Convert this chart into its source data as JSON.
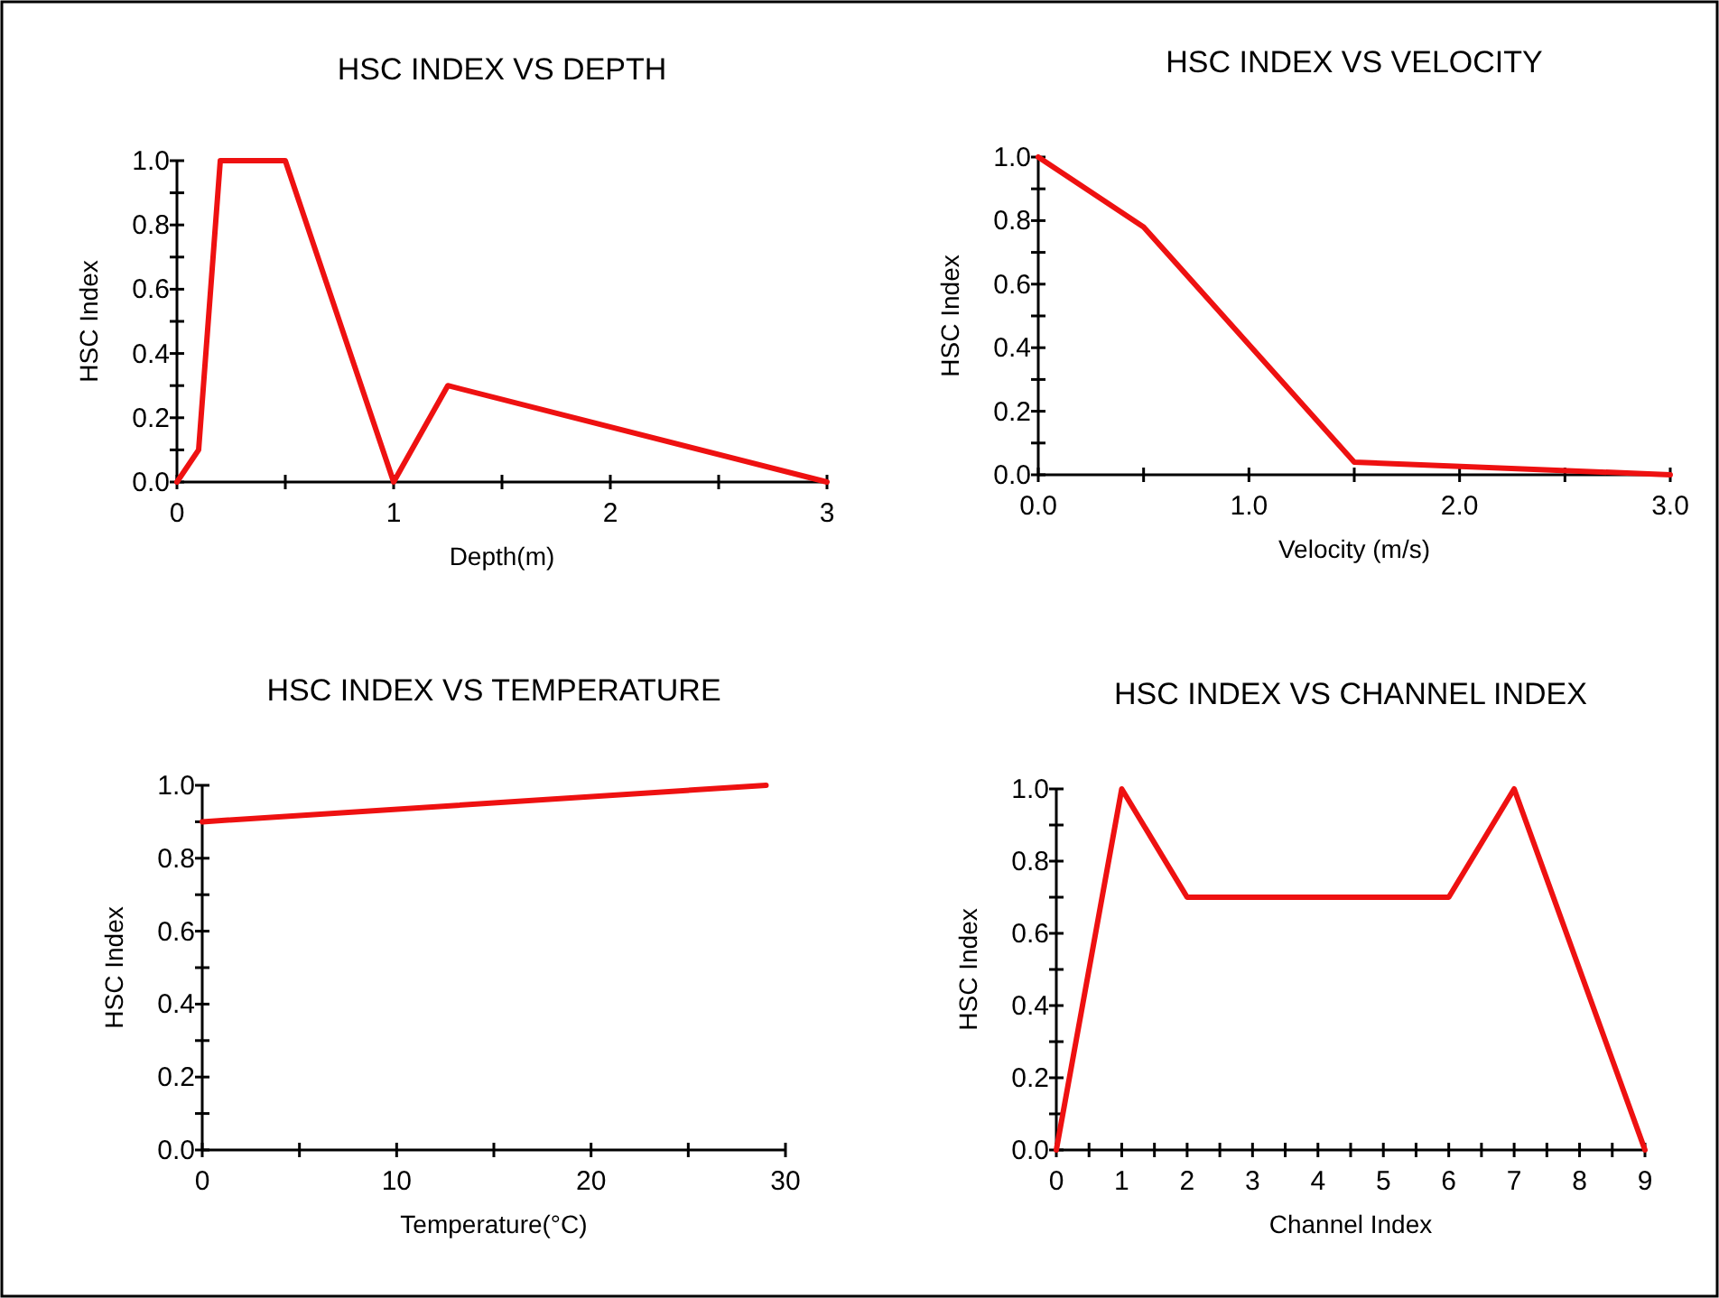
{
  "chart_data": [
    {
      "type": "line",
      "title": "HSC INDEX VS DEPTH",
      "xlabel": "Depth(m)",
      "ylabel": "HSC Index",
      "x": [
        0,
        0.1,
        0.2,
        0.5,
        1,
        1.25,
        3
      ],
      "series": [
        {
          "color": "#ee1111",
          "values": [
            0,
            0.1,
            1.0,
            1.0,
            0,
            0.3,
            0
          ]
        }
      ],
      "xlim": [
        0,
        3
      ],
      "xticks": [
        0,
        {
          "value": 0.5,
          "label": null
        },
        1,
        {
          "value": 1.5,
          "label": null
        },
        2,
        {
          "value": 2.5,
          "label": null
        },
        3
      ],
      "ylim": [
        0,
        1
      ],
      "yticks": [
        {
          "value": 0,
          "label": "0.0"
        },
        {
          "value": 0.1,
          "label": null
        },
        {
          "value": 0.2,
          "label": "0.2"
        },
        {
          "value": 0.3,
          "label": null
        },
        {
          "value": 0.4,
          "label": "0.4"
        },
        {
          "value": 0.5,
          "label": null
        },
        {
          "value": 0.6,
          "label": "0.6"
        },
        {
          "value": 0.7,
          "label": null
        },
        {
          "value": 0.8,
          "label": "0.8"
        },
        {
          "value": 0.9,
          "label": null
        },
        {
          "value": 1,
          "label": "1.0"
        }
      ],
      "grid": false,
      "marker": "none",
      "line_style": "solid"
    },
    {
      "type": "line",
      "title": "HSC INDEX VS VELOCITY",
      "xlabel": "Velocity (m/s)",
      "ylabel": "HSC Index",
      "x": [
        0,
        0.5,
        1.5,
        3
      ],
      "series": [
        {
          "color": "#ee1111",
          "values": [
            1.0,
            0.78,
            0.04,
            0
          ]
        }
      ],
      "xlim": [
        0,
        3
      ],
      "xticks": [
        {
          "value": 0,
          "label": "0.0"
        },
        {
          "value": 0.5,
          "label": null
        },
        {
          "value": 1,
          "label": "1.0"
        },
        {
          "value": 1.5,
          "label": null
        },
        {
          "value": 2,
          "label": "2.0"
        },
        {
          "value": 2.5,
          "label": null
        },
        {
          "value": 3,
          "label": "3.0"
        }
      ],
      "ylim": [
        0,
        1
      ],
      "yticks": [
        {
          "value": 0,
          "label": "0.0"
        },
        {
          "value": 0.1,
          "label": null
        },
        {
          "value": 0.2,
          "label": "0.2"
        },
        {
          "value": 0.3,
          "label": null
        },
        {
          "value": 0.4,
          "label": "0.4"
        },
        {
          "value": 0.5,
          "label": null
        },
        {
          "value": 0.6,
          "label": "0.6"
        },
        {
          "value": 0.7,
          "label": null
        },
        {
          "value": 0.8,
          "label": "0.8"
        },
        {
          "value": 0.9,
          "label": null
        },
        {
          "value": 1,
          "label": "1.0"
        }
      ],
      "grid": false,
      "marker": "none",
      "line_style": "solid"
    },
    {
      "type": "line",
      "title": "HSC INDEX VS TEMPERATURE",
      "xlabel": "Temperature(°C)",
      "ylabel": "HSC Index",
      "x": [
        0,
        29
      ],
      "series": [
        {
          "color": "#ee1111",
          "values": [
            0.9,
            1.0
          ]
        }
      ],
      "xlim": [
        0,
        30
      ],
      "xticks": [
        0,
        {
          "value": 5,
          "label": null
        },
        10,
        {
          "value": 15,
          "label": null
        },
        20,
        {
          "value": 25,
          "label": null
        },
        30
      ],
      "ylim": [
        0,
        1
      ],
      "yticks": [
        {
          "value": 0,
          "label": "0.0"
        },
        {
          "value": 0.1,
          "label": null
        },
        {
          "value": 0.2,
          "label": "0.2"
        },
        {
          "value": 0.3,
          "label": null
        },
        {
          "value": 0.4,
          "label": "0.4"
        },
        {
          "value": 0.5,
          "label": null
        },
        {
          "value": 0.6,
          "label": "0.6"
        },
        {
          "value": 0.7,
          "label": null
        },
        {
          "value": 0.8,
          "label": "0.8"
        },
        {
          "value": 0.9,
          "label": null
        },
        {
          "value": 1,
          "label": "1.0"
        }
      ],
      "grid": false,
      "marker": "none",
      "line_style": "solid"
    },
    {
      "type": "line",
      "title": "HSC INDEX VS CHANNEL INDEX",
      "xlabel": "Channel Index",
      "ylabel": "HSC Index",
      "x": [
        0,
        1,
        2,
        6,
        7,
        9
      ],
      "series": [
        {
          "color": "#ee1111",
          "values": [
            0,
            1.0,
            0.7,
            0.7,
            1.0,
            0
          ]
        }
      ],
      "xlim": [
        0,
        9
      ],
      "xticks": [
        0,
        {
          "value": 0.5,
          "label": null
        },
        1,
        {
          "value": 1.5,
          "label": null
        },
        2,
        {
          "value": 2.5,
          "label": null
        },
        3,
        {
          "value": 3.5,
          "label": null
        },
        4,
        {
          "value": 4.5,
          "label": null
        },
        5,
        {
          "value": 5.5,
          "label": null
        },
        6,
        {
          "value": 6.5,
          "label": null
        },
        7,
        {
          "value": 7.5,
          "label": null
        },
        8,
        {
          "value": 8.5,
          "label": null
        },
        9
      ],
      "ylim": [
        0,
        1
      ],
      "yticks": [
        {
          "value": 0,
          "label": "0.0"
        },
        {
          "value": 0.1,
          "label": null
        },
        {
          "value": 0.2,
          "label": "0.2"
        },
        {
          "value": 0.3,
          "label": null
        },
        {
          "value": 0.4,
          "label": "0.4"
        },
        {
          "value": 0.5,
          "label": null
        },
        {
          "value": 0.6,
          "label": "0.6"
        },
        {
          "value": 0.7,
          "label": null
        },
        {
          "value": 0.8,
          "label": "0.8"
        },
        {
          "value": 0.9,
          "label": null
        },
        {
          "value": 1,
          "label": "1.0"
        }
      ],
      "grid": false,
      "marker": "none",
      "line_style": "solid"
    }
  ]
}
